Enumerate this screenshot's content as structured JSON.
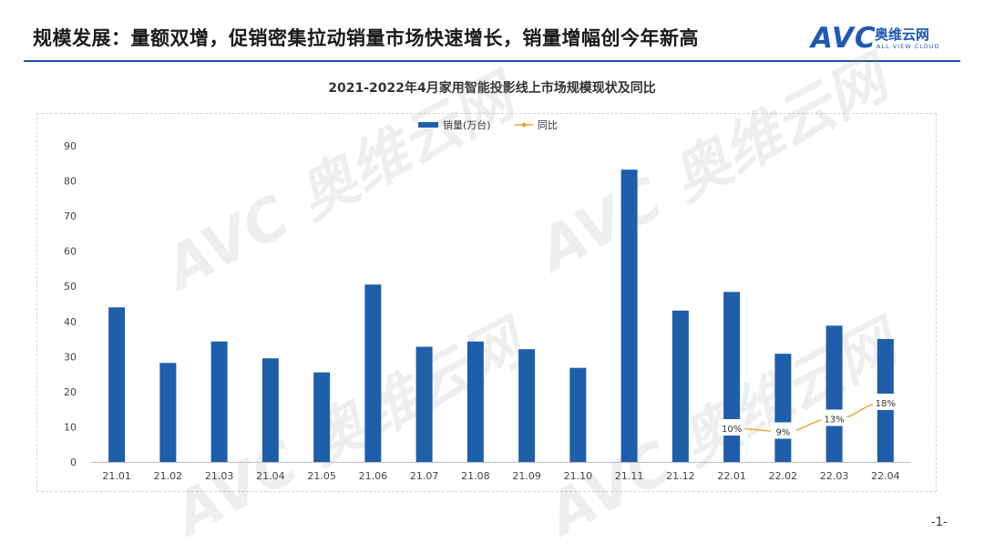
{
  "header": {
    "title": "规模发展：量额双增，促销密集拉动销量市场快速增长，销量增幅创今年新高",
    "logo_mark": "AVC",
    "logo_cn": "奥维云网",
    "logo_en": "ALL VIEW CLOUD"
  },
  "footer": {
    "page_number": "-1-"
  },
  "colors": {
    "bar": "#1f5eab",
    "line": "#f2a23a",
    "rule": "#1f4e9c"
  },
  "chart_data": {
    "type": "bar",
    "title": "2021-2022年4月家用智能投影线上市场规模现状及同比",
    "categories": [
      "21.01",
      "21.02",
      "21.03",
      "21.04",
      "21.05",
      "21.06",
      "21.07",
      "21.08",
      "21.09",
      "21.10",
      "21.11",
      "21.12",
      "22.01",
      "22.02",
      "22.03",
      "22.04"
    ],
    "series": [
      {
        "name": "销量(万台)",
        "type": "bar",
        "values": [
          44,
          28.2,
          34.3,
          29.5,
          25.5,
          50.5,
          32.8,
          34.3,
          32.1,
          26.8,
          83.2,
          43.1,
          48.4,
          30.8,
          38.8,
          35
        ]
      },
      {
        "name": "同比",
        "type": "line",
        "values": [
          null,
          null,
          null,
          null,
          null,
          null,
          null,
          null,
          null,
          null,
          null,
          null,
          0.1,
          0.09,
          0.13,
          0.18
        ],
        "labels": [
          "",
          "",
          "",
          "",
          "",
          "",
          "",
          "",
          "",
          "",
          "",
          "",
          "10%",
          "9%",
          "13%",
          "18%"
        ]
      }
    ],
    "ylim": [
      0,
      90
    ],
    "yticks": [
      0,
      10,
      20,
      30,
      40,
      50,
      60,
      70,
      80,
      90
    ],
    "xlabel": "",
    "ylabel": "",
    "grid": false,
    "legend": "top-center"
  }
}
